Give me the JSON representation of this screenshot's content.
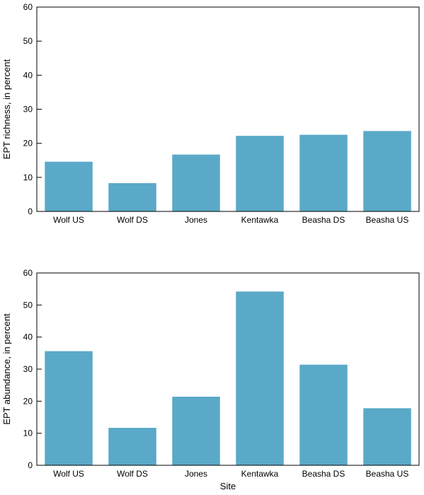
{
  "chart_data": [
    {
      "type": "bar",
      "categories": [
        "Wolf US",
        "Wolf DS",
        "Jones",
        "Kentawka",
        "Beasha DS",
        "Beasha US"
      ],
      "values": [
        14.6,
        8.3,
        16.7,
        22.2,
        22.5,
        23.6
      ],
      "xlabel": "",
      "ylabel": "EPT richness, in percent",
      "ylim": [
        0,
        60
      ],
      "yticks": [
        0,
        10,
        20,
        30,
        40,
        50,
        60
      ],
      "bar_color": "#5aa9c8",
      "grid": false
    },
    {
      "type": "bar",
      "categories": [
        "Wolf US",
        "Wolf DS",
        "Jones",
        "Kentawka",
        "Beasha DS",
        "Beasha US"
      ],
      "values": [
        35.6,
        11.7,
        21.4,
        54.2,
        31.4,
        17.8
      ],
      "xlabel": "Site",
      "ylabel": "EPT abundance, in percent",
      "ylim": [
        0,
        60
      ],
      "yticks": [
        0,
        10,
        20,
        30,
        40,
        50,
        60
      ],
      "bar_color": "#5aa9c8",
      "grid": false
    }
  ]
}
